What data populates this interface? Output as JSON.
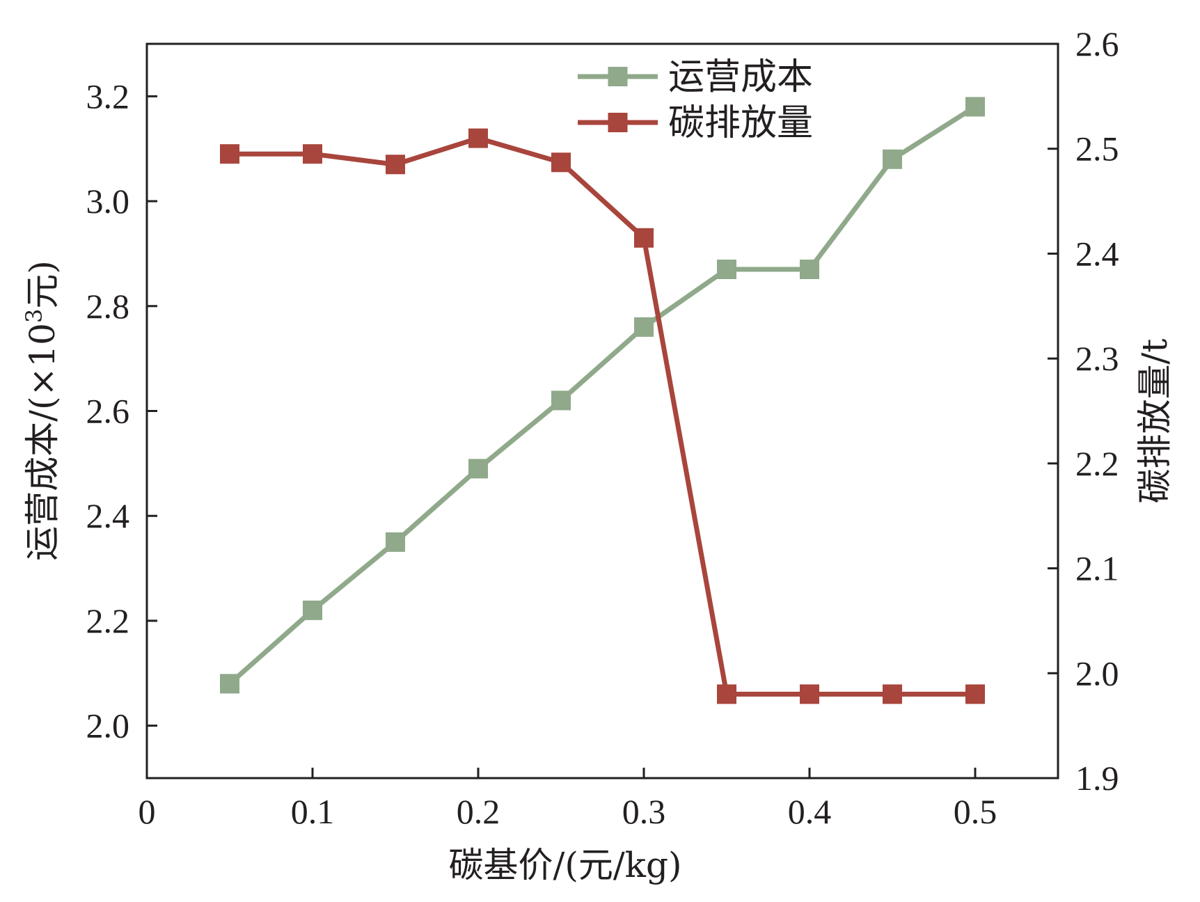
{
  "chart_data": {
    "type": "line",
    "x": [
      0.05,
      0.1,
      0.15,
      0.2,
      0.25,
      0.3,
      0.35,
      0.4,
      0.45,
      0.5
    ],
    "xlabel": "碳基价/(元/kg)",
    "xlim": [
      0,
      0.55
    ],
    "xticks": [
      "0",
      "0.1",
      "0.2",
      "0.3",
      "0.4",
      "0.5"
    ],
    "xtick_values": [
      0,
      0.1,
      0.2,
      0.3,
      0.4,
      0.5
    ],
    "ylabel_left": {
      "prefix": "运营成本/(×10",
      "superscript": "3",
      "suffix": "元)"
    },
    "ylim_left": [
      1.9,
      3.3
    ],
    "yticks_left": [
      "2.0",
      "2.2",
      "2.4",
      "2.6",
      "2.8",
      "3.0",
      "3.2"
    ],
    "ytick_values_left": [
      2.0,
      2.2,
      2.4,
      2.6,
      2.8,
      3.0,
      3.2
    ],
    "ylabel_right": "碳排放量/t",
    "ylim_right": [
      1.9,
      2.6
    ],
    "yticks_right": [
      "1.9",
      "2.0",
      "2.1",
      "2.2",
      "2.3",
      "2.4",
      "2.5",
      "2.6"
    ],
    "ytick_values_right": [
      1.9,
      2.0,
      2.1,
      2.2,
      2.3,
      2.4,
      2.5,
      2.6
    ],
    "legend_position": "top-center",
    "grid": false,
    "series": [
      {
        "name": "运营成本",
        "axis": "left",
        "color": "#8fa98a",
        "marker": "square",
        "values": [
          2.08,
          2.22,
          2.35,
          2.49,
          2.62,
          2.76,
          2.87,
          2.87,
          3.08,
          3.18
        ]
      },
      {
        "name": "碳排放量",
        "axis": "right",
        "color": "#a8453c",
        "marker": "square",
        "values": [
          2.495,
          2.495,
          2.485,
          2.51,
          2.487,
          2.415,
          1.98,
          1.98,
          1.98,
          1.98
        ]
      }
    ]
  }
}
